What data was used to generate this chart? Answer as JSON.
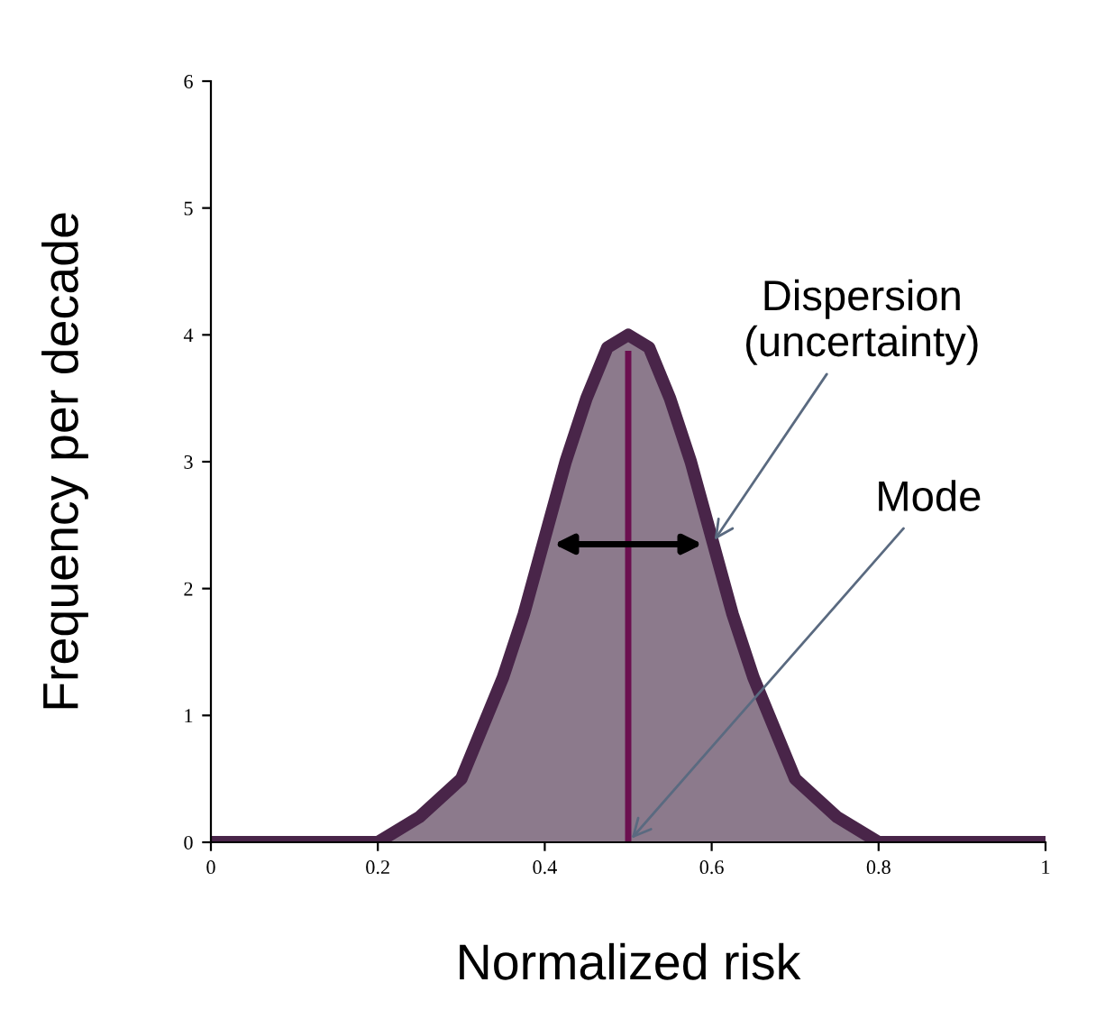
{
  "chart_data": {
    "type": "area",
    "xlabel": "Normalized risk",
    "ylabel": "Frequency per decade",
    "series": [
      {
        "color": "#8c7a8c",
        "x": [
          0,
          0.05,
          0.1,
          0.15,
          0.2,
          0.25,
          0.3,
          0.325,
          0.35,
          0.375,
          0.4,
          0.425,
          0.45,
          0.475,
          0.5,
          0.525,
          0.55,
          0.575,
          0.6,
          0.625,
          0.65,
          0.675,
          0.7,
          0.75,
          0.8,
          0.85,
          0.9,
          0.95,
          1
        ],
        "values": [
          0,
          0,
          0,
          0,
          0,
          0.2,
          0.5,
          0.9,
          1.3,
          1.8,
          2.4,
          3.0,
          3.5,
          3.9,
          4.0,
          3.9,
          3.5,
          3.0,
          2.4,
          1.8,
          1.3,
          0.9,
          0.5,
          0.2,
          0,
          0,
          0,
          0,
          0
        ]
      },
      {
        "type": "line",
        "color": "#6b0f4f",
        "x": [
          0.5,
          0.5
        ],
        "values": [
          0,
          3.85
        ]
      }
    ],
    "annotations": [
      {
        "text": "Dispersion\n(uncertainty)",
        "x": 0.6,
        "y": 2.35
      },
      {
        "text": "Mode",
        "x": 0.5,
        "y": 0
      }
    ],
    "xlim": [
      0,
      1
    ],
    "ylim": [
      0,
      6
    ],
    "xticks": [
      0,
      0.2,
      0.4,
      0.6,
      0.8,
      1
    ],
    "yticks": [
      0,
      1,
      2,
      3,
      4,
      5,
      6
    ],
    "grid": false,
    "legend": false
  }
}
